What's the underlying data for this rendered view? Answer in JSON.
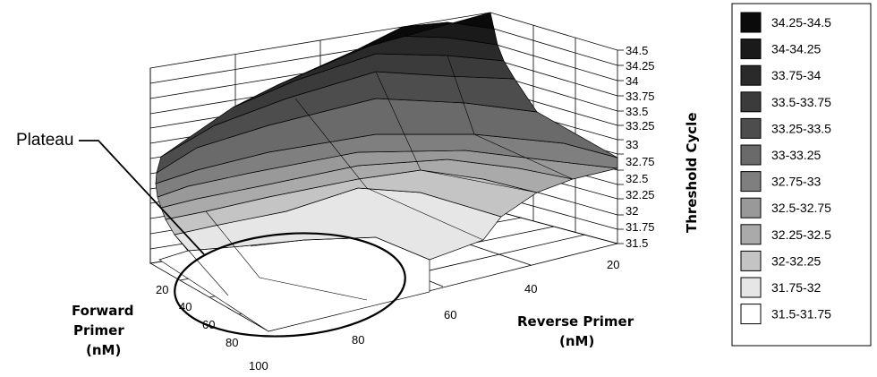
{
  "chart_data": {
    "type": "surface",
    "x_axis": {
      "title": [
        "Forward",
        "Primer",
        "(nM)"
      ],
      "ticks": [
        20,
        40,
        60,
        80,
        100
      ]
    },
    "y_axis": {
      "title": [
        "Reverse Primer",
        "(nM)"
      ],
      "ticks": [
        20,
        40,
        60,
        80
      ]
    },
    "z_axis": {
      "title": "Threshold Cycle",
      "ticks": [
        "34.5",
        "34.25",
        "34",
        "33.75",
        "33.5",
        "33.25",
        "33",
        "32.75",
        "32.5",
        "32.25",
        "32",
        "31.75",
        "31.5"
      ],
      "range": [
        31.5,
        34.5
      ]
    },
    "legend": {
      "placement": "right",
      "entries": [
        {
          "label": "34.25-34.5",
          "color": "#0a0a0a"
        },
        {
          "label": "34-34.25",
          "color": "#1a1a1a"
        },
        {
          "label": "33.75-34",
          "color": "#2a2a2a"
        },
        {
          "label": "33.5-33.75",
          "color": "#3b3b3b"
        },
        {
          "label": "33.25-33.5",
          "color": "#4d4d4d"
        },
        {
          "label": "33-33.25",
          "color": "#6a6a6a"
        },
        {
          "label": "32.75-33",
          "color": "#7f7f7f"
        },
        {
          "label": "32.5-32.75",
          "color": "#999999"
        },
        {
          "label": "32.25-32.5",
          "color": "#aaaaaa"
        },
        {
          "label": "32-32.25",
          "color": "#c4c4c4"
        },
        {
          "label": "31.75-32",
          "color": "#e6e6e6"
        },
        {
          "label": "31.5-31.75",
          "color": "#ffffff"
        }
      ]
    },
    "annotation": "Plateau",
    "grid": true
  }
}
